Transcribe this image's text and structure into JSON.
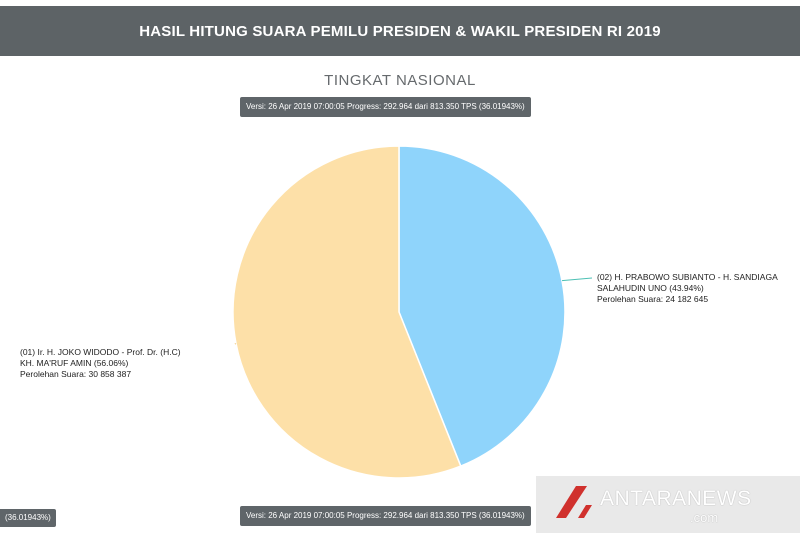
{
  "header": {
    "title": "HASIL HITUNG SUARA PEMILU PRESIDEN & WAKIL PRESIDEN RI 2019"
  },
  "version_text": "Versi: 26 Apr 2019 07:00:05 Progress: 292.964 dari 813.350 TPS (36.01943%)",
  "progress_left_text": "(36.01943%)",
  "watermark": {
    "brand": "ANTARANEWS",
    "suffix": ".com"
  },
  "chart_data": {
    "type": "pie",
    "title": "TINGKAT NASIONAL",
    "slices": [
      {
        "line1": "(02) H. PRABOWO SUBIANTO - H. SANDIAGA",
        "line2": "SALAHUDIN UNO (43.94%)",
        "line3": "Perolehan Suara: 24 182 645",
        "value": 24182645,
        "percent": 43.94,
        "color": "#8fd4fb"
      },
      {
        "line1": "(01) Ir. H. JOKO WIDODO - Prof. Dr. (H.C)",
        "line2": "KH. MA'RUF AMIN (56.06%)",
        "line3": "Perolehan Suara: 30 858 387",
        "value": 30858387,
        "percent": 56.06,
        "color": "#fde0a8"
      }
    ]
  }
}
